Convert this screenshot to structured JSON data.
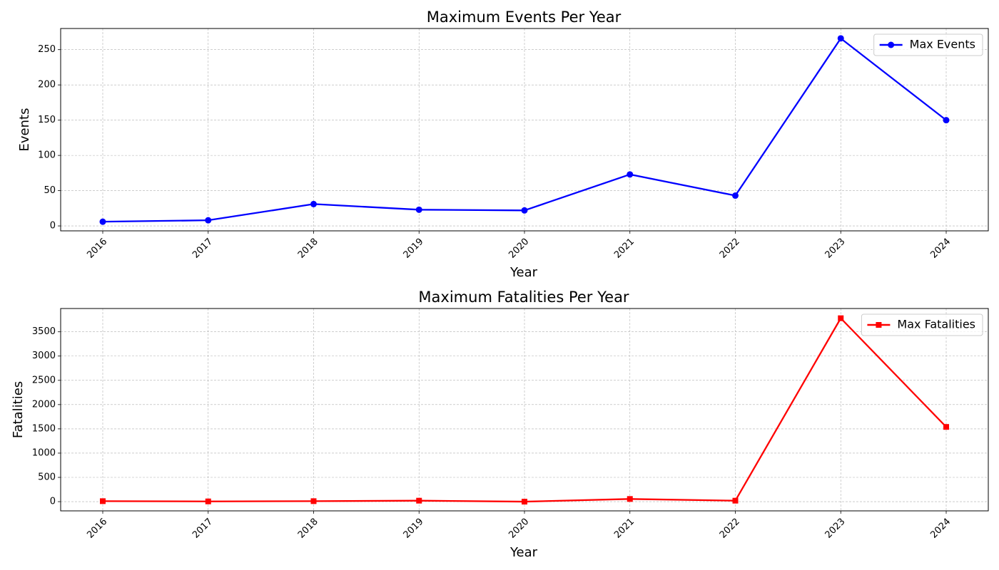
{
  "chart_data": [
    {
      "type": "line",
      "title": "Maximum Events Per Year",
      "xlabel": "Year",
      "ylabel": "Events",
      "x": [
        "2016",
        "2017",
        "2018",
        "2019",
        "2020",
        "2021",
        "2022",
        "2023",
        "2024"
      ],
      "yticks": [
        0,
        50,
        100,
        150,
        200,
        250
      ],
      "ylim": [
        -7,
        280
      ],
      "grid": true,
      "legend_position": "top-right",
      "series": [
        {
          "name": "Max Events",
          "color": "#0000ff",
          "marker": "circle",
          "values": [
            6,
            8,
            31,
            23,
            22,
            73,
            43,
            266,
            150
          ]
        }
      ]
    },
    {
      "type": "line",
      "title": "Maximum Fatalities Per Year",
      "xlabel": "Year",
      "ylabel": "Fatalities",
      "x": [
        "2016",
        "2017",
        "2018",
        "2019",
        "2020",
        "2021",
        "2022",
        "2023",
        "2024"
      ],
      "yticks": [
        0,
        500,
        1000,
        1500,
        2000,
        2500,
        3000,
        3500
      ],
      "ylim": [
        -190,
        3980
      ],
      "grid": true,
      "legend_position": "top-right",
      "series": [
        {
          "name": "Max Fatalities",
          "color": "#ff0000",
          "marker": "square",
          "values": [
            10,
            5,
            10,
            20,
            0,
            55,
            20,
            3780,
            1540
          ]
        }
      ]
    }
  ]
}
